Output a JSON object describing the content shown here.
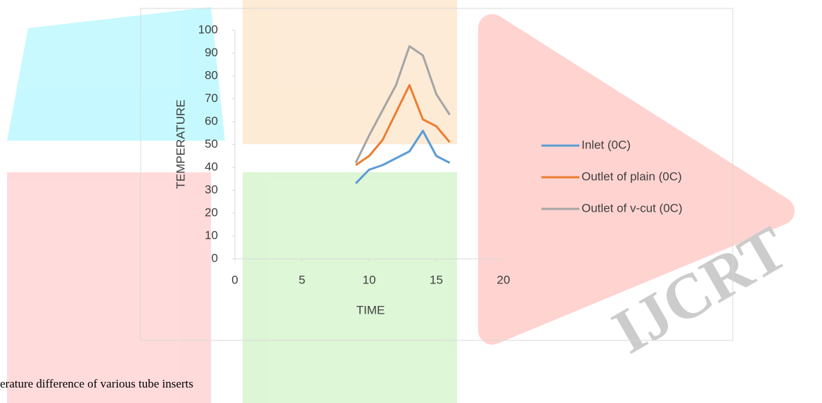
{
  "chart_data": {
    "type": "line",
    "x_label": "TIME",
    "y_label": "TEMPERATURE",
    "x": [
      9,
      10,
      11,
      12,
      13,
      14,
      15,
      16
    ],
    "series": [
      {
        "name": "Inlet (0C)",
        "color": "#5b9bd5",
        "values": [
          33,
          39,
          41,
          44,
          47,
          56,
          45,
          42
        ]
      },
      {
        "name": "Outlet of plain (0C)",
        "color": "#ed7d31",
        "values": [
          41,
          45,
          52,
          64,
          76,
          61,
          58,
          51
        ]
      },
      {
        "name": "Outlet of v-cut (0C)",
        "color": "#a5a5a5",
        "values": [
          42,
          54,
          65,
          76,
          93,
          89,
          72,
          63
        ]
      }
    ],
    "xlim": [
      0,
      20
    ],
    "xticks": [
      0,
      5,
      10,
      15,
      20
    ],
    "ylim": [
      0,
      100
    ],
    "yticks": [
      0,
      10,
      20,
      30,
      40,
      50,
      60,
      70,
      80,
      90,
      100
    ],
    "legend": "right",
    "grid": false
  },
  "caption": "erature difference of various tube inserts",
  "watermark": "IJCRT"
}
